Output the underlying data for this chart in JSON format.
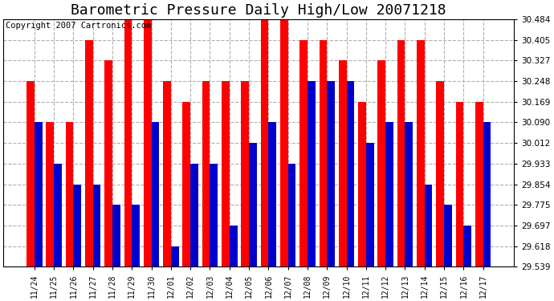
{
  "title": "Barometric Pressure Daily High/Low 20071218",
  "copyright": "Copyright 2007 Cartronics.com",
  "dates": [
    "11/24",
    "11/25",
    "11/26",
    "11/27",
    "11/28",
    "11/29",
    "11/30",
    "12/01",
    "12/02",
    "12/03",
    "12/04",
    "12/05",
    "12/06",
    "12/07",
    "12/08",
    "12/09",
    "12/10",
    "12/11",
    "12/12",
    "12/13",
    "12/14",
    "12/15",
    "12/16",
    "12/17"
  ],
  "highs": [
    30.248,
    30.09,
    30.09,
    30.405,
    30.327,
    30.484,
    30.484,
    30.248,
    30.169,
    30.248,
    30.248,
    30.248,
    30.484,
    30.484,
    30.405,
    30.405,
    30.327,
    30.169,
    30.327,
    30.405,
    30.405,
    30.248,
    30.169,
    30.169
  ],
  "lows": [
    30.09,
    29.933,
    29.854,
    29.854,
    29.775,
    29.775,
    30.09,
    29.618,
    29.933,
    29.933,
    29.697,
    30.012,
    30.09,
    29.933,
    30.248,
    30.248,
    30.248,
    30.012,
    30.09,
    30.09,
    29.854,
    29.775,
    29.697,
    30.09
  ],
  "bar_color_high": "#ff0000",
  "bar_color_low": "#0000cc",
  "background_color": "#ffffff",
  "grid_color": "#b0b0b0",
  "yticks": [
    29.539,
    29.618,
    29.697,
    29.775,
    29.854,
    29.933,
    30.012,
    30.09,
    30.169,
    30.248,
    30.327,
    30.405,
    30.484
  ],
  "ymin": 29.539,
  "ymax": 30.484,
  "title_fontsize": 13,
  "copyright_fontsize": 7.5
}
